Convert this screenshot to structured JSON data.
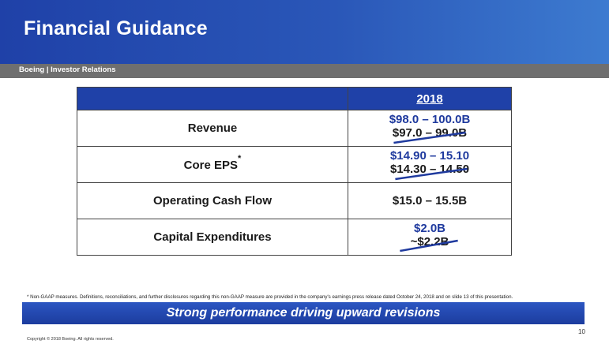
{
  "header": {
    "title": "Financial Guidance",
    "subtitle": "Boeing | Investor Relations"
  },
  "table": {
    "year_header": "2018",
    "rows": [
      {
        "label": "Revenue",
        "has_asterisk": false,
        "new_value": "$98.0 – 100.0B",
        "old_value": "$97.0 – 99.0B",
        "revised": true
      },
      {
        "label": "Core EPS",
        "has_asterisk": true,
        "new_value": "$14.90 – 15.10",
        "old_value": "$14.30 – 14.50",
        "revised": true
      },
      {
        "label": "Operating Cash Flow",
        "has_asterisk": false,
        "value": "$15.0 – 15.5B",
        "revised": false
      },
      {
        "label": "Capital Expenditures",
        "has_asterisk": false,
        "new_value": "$2.0B",
        "old_value": "~$2.2B",
        "revised": true
      }
    ],
    "asterisk": "*"
  },
  "footnote": "*   Non-GAAP measures. Definitions, reconciliations, and further disclosures regarding this non-GAAP measure are provided in the company's earnings press release dated October 24, 2018 and on slide 13 of this presentation.",
  "banner": "Strong performance driving upward revisions",
  "page_number": "10",
  "copyright": "Copyright © 2018 Boeing. All rights reserved.",
  "colors": {
    "brand_blue": "#1f41a8",
    "revision_blue": "#1f3a9e",
    "gray_bar": "#6f6f6f"
  }
}
